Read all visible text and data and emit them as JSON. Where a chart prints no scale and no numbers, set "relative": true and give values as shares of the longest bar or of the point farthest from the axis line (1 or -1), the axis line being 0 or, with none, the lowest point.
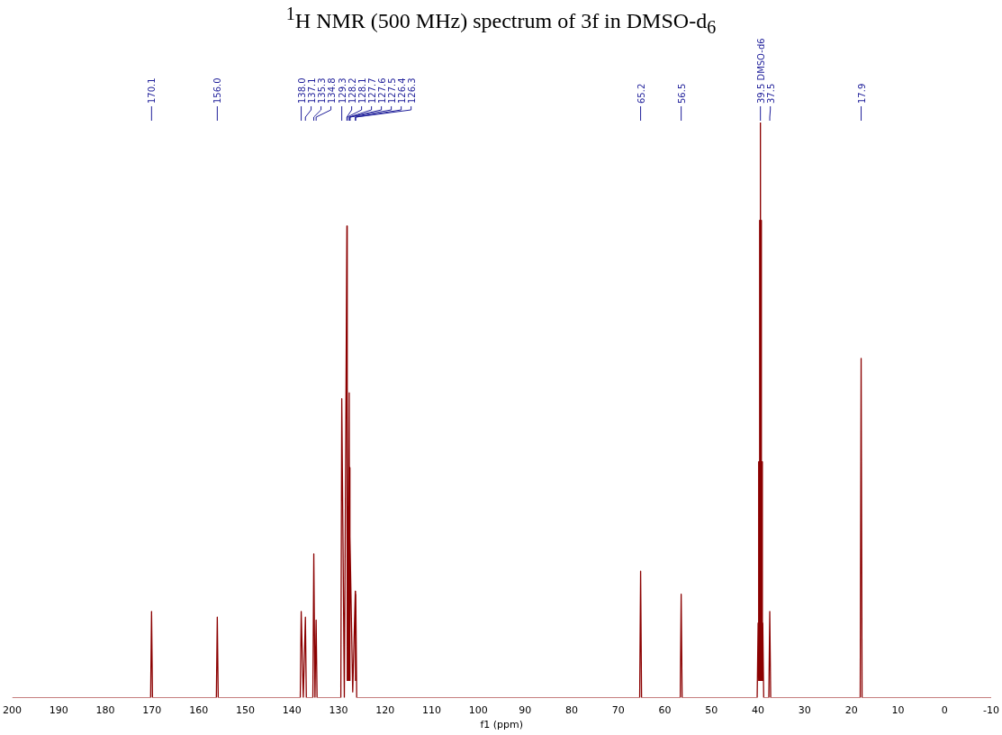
{
  "chart_data": {
    "type": "line",
    "title": "$^{1}$H NMR (500 MHz) spectrum of 3f in DMSO-d$_{6}$",
    "xlabel": "f1 (ppm)",
    "relative": true,
    "xlim": [
      200,
      -10
    ],
    "xticks": [
      200,
      190,
      180,
      170,
      160,
      150,
      140,
      130,
      120,
      110,
      100,
      90,
      80,
      70,
      60,
      50,
      40,
      30,
      20,
      10,
      0,
      -10
    ],
    "series": [
      {
        "color": "#8b0000",
        "x": [
          200,
          170.3,
          170.1,
          169.9,
          156.2,
          156.0,
          155.8,
          138.2,
          138.0,
          137.55,
          137.1,
          136.9,
          135.5,
          135.3,
          135.05,
          134.8,
          134.6,
          129.5,
          129.3,
          128.75,
          128.2,
          128.15,
          128.1,
          127.9,
          127.7,
          127.65,
          127.6,
          127.55,
          127.5,
          126.95,
          126.4,
          126.35,
          126.3,
          126.1,
          65.4,
          65.2,
          65.0,
          56.7,
          56.5,
          56.3,
          40.2,
          40.0,
          39.92,
          39.84,
          39.75,
          39.67,
          39.58,
          39.5,
          39.42,
          39.33,
          39.25,
          39.16,
          39.08,
          39.0,
          38.8,
          37.7,
          37.5,
          37.3,
          18.1,
          17.9,
          17.7,
          -10
        ],
        "values": [
          0,
          0,
          0.15,
          0,
          0,
          0.14,
          0,
          0,
          0.15,
          0,
          0.14,
          0,
          0,
          0.25,
          0,
          0.135,
          0,
          0,
          0.52,
          0,
          0.82,
          0.03,
          0.54,
          0.03,
          0.53,
          0.03,
          0.4,
          0.03,
          0.28,
          0.01,
          0.185,
          0.03,
          0.18,
          0,
          0,
          0.22,
          0,
          0,
          0.18,
          0,
          0,
          0.13,
          0.03,
          0.41,
          0.03,
          0.83,
          0.03,
          1,
          0.03,
          0.83,
          0.03,
          0.41,
          0.03,
          0.13,
          0,
          0,
          0.15,
          0,
          0,
          0.59,
          0,
          0
        ]
      }
    ],
    "annotations": [
      {
        "text": "170.1",
        "x": 170.1
      },
      {
        "text": "156.0",
        "x": 156.0
      },
      {
        "text": "138.0",
        "x": 138.0
      },
      {
        "text": "137.1",
        "x": 137.1
      },
      {
        "text": "135.3",
        "x": 135.3
      },
      {
        "text": "134.8",
        "x": 134.8
      },
      {
        "text": "129.3",
        "x": 129.3
      },
      {
        "text": "128.2",
        "x": 128.2
      },
      {
        "text": "128.1",
        "x": 128.1
      },
      {
        "text": "127.7",
        "x": 127.7
      },
      {
        "text": "127.6",
        "x": 127.6
      },
      {
        "text": "127.5",
        "x": 127.5
      },
      {
        "text": "126.4",
        "x": 126.4
      },
      {
        "text": "126.3",
        "x": 126.3
      },
      {
        "text": "65.2",
        "x": 65.2
      },
      {
        "text": "56.5",
        "x": 56.5
      },
      {
        "text": "39.5 DMSO-d6",
        "x": 39.5
      },
      {
        "text": "37.5",
        "x": 37.5
      },
      {
        "text": "17.9",
        "x": 17.9
      }
    ]
  }
}
